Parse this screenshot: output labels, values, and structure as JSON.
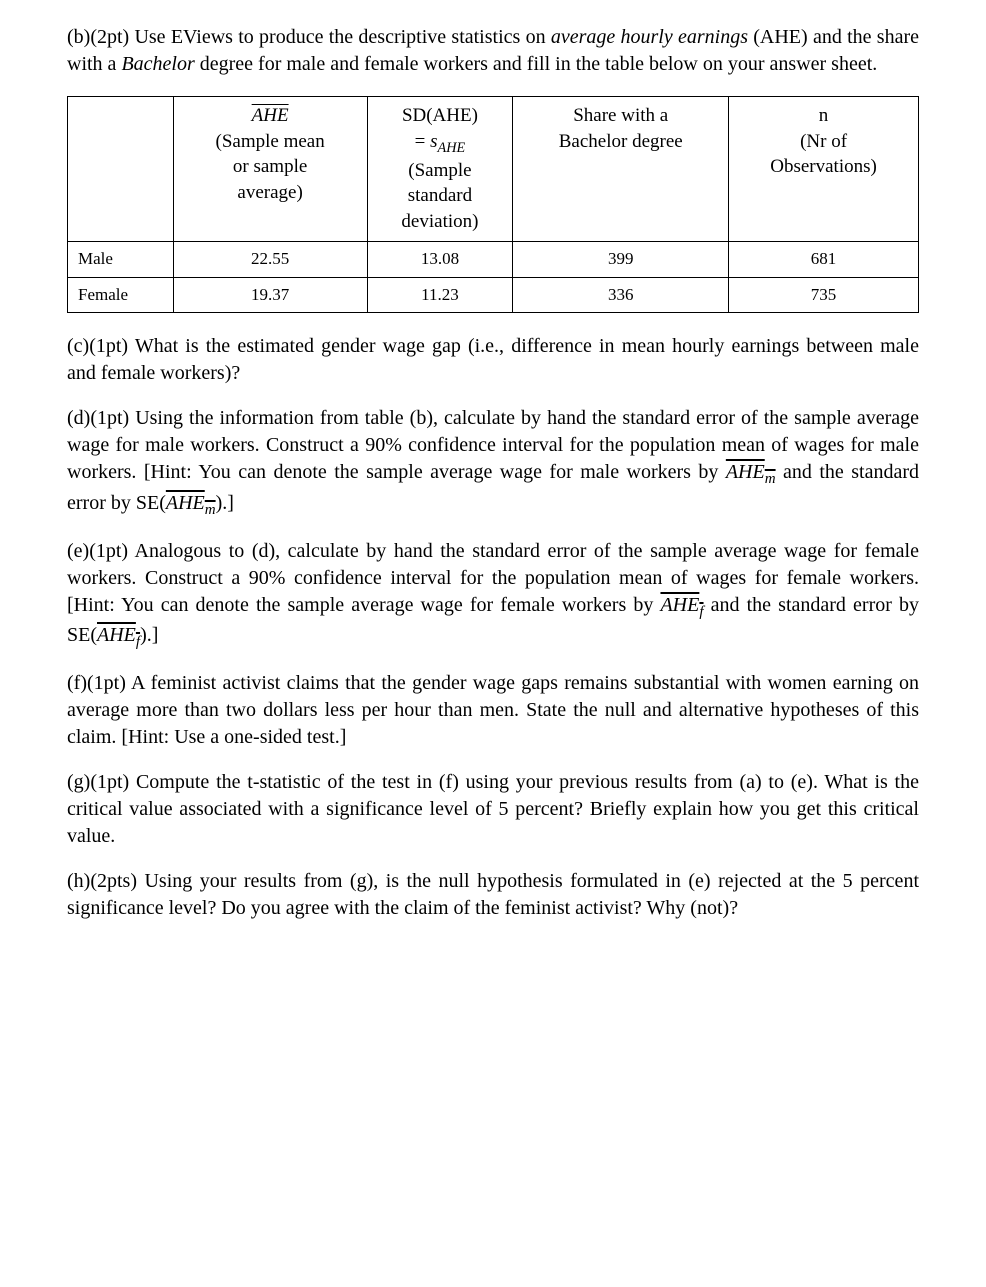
{
  "fontBase": 20,
  "colors": {
    "text": "#000000",
    "bg": "#ffffff",
    "border": "#000000"
  },
  "b": {
    "text": "(b)(2pt) Use EViews to produce the descriptive statistics on ",
    "em1": "average hourly earnings",
    "text2": " (AHE) and the share with a ",
    "em2": "Bachelor",
    "text3": " degree for male and female workers and fill in the table below on your answer sheet."
  },
  "table": {
    "headers": {
      "col1": {
        "l1": "AHE",
        "l2": "(Sample mean",
        "l3": "or sample",
        "l4": "average)"
      },
      "col2": {
        "l1": "SD(AHE)",
        "l2a": "= ",
        "l2b": "s",
        "l2c": "AHE",
        "l3": "(Sample",
        "l4": "standard",
        "l5": "deviation)"
      },
      "col3": {
        "l1": "Share with a",
        "l2": "Bachelor degree"
      },
      "col4": {
        "l1": "n",
        "l2": "(Nr of",
        "l3": "Observations)"
      }
    },
    "rows": [
      {
        "label": "Male",
        "ahe": "22.55",
        "sd": "13.08",
        "share": "399",
        "n": "681"
      },
      {
        "label": "Female",
        "ahe": "19.37",
        "sd": "11.23",
        "share": "336",
        "n": "735"
      }
    ]
  },
  "c": "(c)(1pt) What is the estimated gender wage gap (i.e., difference in mean hourly earnings between male and female workers)?",
  "d": {
    "t1": "(d)(1pt) Using the information from table (b), calculate by hand the standard error of the sample average wage for male workers. Construct a 90% confidence interval for the population mean of wages for male workers. [Hint: You can denote the sample average wage for male workers by ",
    "sym1": "AHE",
    "sub1": "m",
    "t2": "  and the standard error by SE(",
    "sym2": "AHE",
    "sub2": "m",
    "t3": ").]"
  },
  "e": {
    "t1": "(e)(1pt) Analogous to (d), calculate by hand the standard error of the sample average wage for female workers. Construct a 90% confidence interval for the population mean of wages for female workers. [Hint: You can denote the sample average wage for female workers by ",
    "sym1": "AHE",
    "sub1": "f",
    "t2": "  and the standard error by SE(",
    "sym2": "AHE",
    "sub2": "f",
    "t3": ").]"
  },
  "f": "(f)(1pt) A feminist activist claims that the gender wage gaps remains substantial with women earning on average more than two dollars less per hour than men. State the null and alternative hypotheses of this claim. [Hint: Use a one-sided test.]",
  "g": "(g)(1pt) Compute the t-statistic of the test in (f) using your previous results from (a) to (e). What is the critical value associated with a significance level of 5 percent? Briefly explain how you get this critical value.",
  "h": "(h)(2pts) Using your results from (g), is the null hypothesis formulated in (e) rejected at the 5 percent significance level? Do you agree with the claim of the feminist activist? Why (not)?"
}
